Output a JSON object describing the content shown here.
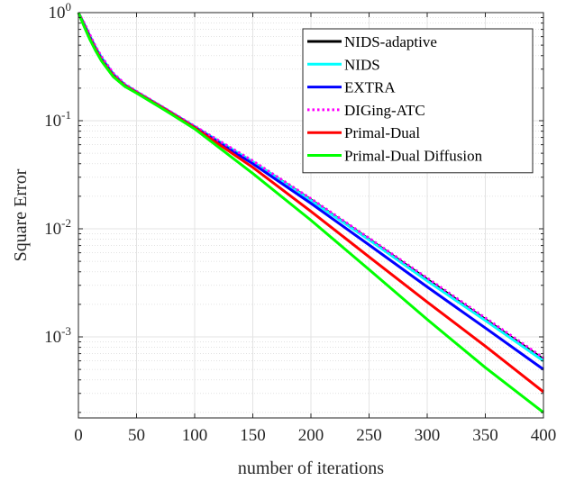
{
  "chart_data": {
    "type": "line",
    "xlabel": "number of iterations",
    "ylabel": "Square Error",
    "xlim": [
      0,
      400
    ],
    "ylim_exponent": [
      -3.75,
      0
    ],
    "yscale": "log",
    "grid": true,
    "legend_position": "top-right",
    "x_ticks": [
      "0",
      "50",
      "100",
      "150",
      "200",
      "250",
      "300",
      "350",
      "400"
    ],
    "y_ticks": [
      {
        "base": "10",
        "exp": "0",
        "decade": 0
      },
      {
        "base": "10",
        "exp": "-1",
        "decade": -1
      },
      {
        "base": "10",
        "exp": "-2",
        "decade": -2
      },
      {
        "base": "10",
        "exp": "-3",
        "decade": -3
      }
    ],
    "x": [
      0,
      5,
      10,
      15,
      20,
      30,
      40,
      50,
      75,
      100,
      150,
      200,
      250,
      300,
      350,
      400
    ],
    "series": [
      {
        "name": "NIDS-adaptive",
        "color": "#000000",
        "dash": "solid",
        "values": [
          1.0,
          0.78,
          0.6,
          0.47,
          0.38,
          0.27,
          0.215,
          0.185,
          0.128,
          0.088,
          0.0415,
          0.0185,
          0.008,
          0.0034,
          0.00145,
          0.00062
        ]
      },
      {
        "name": "NIDS",
        "color": "#00ffff",
        "dash": "solid",
        "values": [
          1.0,
          0.78,
          0.6,
          0.47,
          0.38,
          0.27,
          0.215,
          0.185,
          0.128,
          0.088,
          0.0415,
          0.0183,
          0.0079,
          0.0033,
          0.00142,
          0.0006
        ]
      },
      {
        "name": "EXTRA",
        "color": "#0000ff",
        "dash": "solid",
        "values": [
          1.0,
          0.77,
          0.59,
          0.46,
          0.37,
          0.265,
          0.212,
          0.183,
          0.127,
          0.087,
          0.04,
          0.0172,
          0.0071,
          0.0029,
          0.00121,
          0.0005
        ]
      },
      {
        "name": "DIGing-ATC",
        "color": "#ff00ff",
        "dash": "dotted",
        "values": [
          1.0,
          0.8,
          0.62,
          0.48,
          0.39,
          0.275,
          0.218,
          0.187,
          0.129,
          0.089,
          0.0425,
          0.019,
          0.0082,
          0.0035,
          0.0015,
          0.00064
        ]
      },
      {
        "name": "Primal-Dual",
        "color": "#ff0000",
        "dash": "solid",
        "values": [
          1.0,
          0.75,
          0.57,
          0.45,
          0.36,
          0.26,
          0.21,
          0.182,
          0.126,
          0.086,
          0.037,
          0.0145,
          0.0055,
          0.0021,
          0.00082,
          0.00031
        ]
      },
      {
        "name": "Primal-Dual Diffusion",
        "color": "#00ff00",
        "dash": "solid",
        "values": [
          1.0,
          0.74,
          0.56,
          0.44,
          0.355,
          0.255,
          0.207,
          0.18,
          0.124,
          0.084,
          0.0325,
          0.012,
          0.0042,
          0.00145,
          0.00052,
          0.0002
        ]
      }
    ]
  }
}
